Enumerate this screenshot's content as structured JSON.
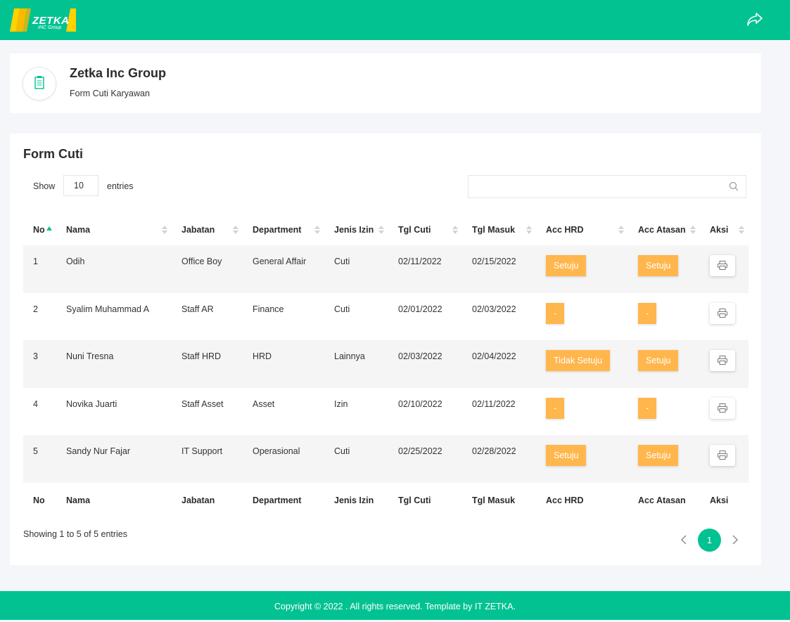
{
  "brand": {
    "name": "ZETKA",
    "sub": "INC Group"
  },
  "header": {
    "title": "Zetka Inc Group",
    "subtitle": "Form Cuti Karyawan"
  },
  "card": {
    "title": "Form Cuti",
    "show": "Show",
    "length": "10",
    "entries": "entries"
  },
  "table": {
    "columns": [
      "No",
      "Nama",
      "Jabatan",
      "Department",
      "Jenis Izin",
      "Tgl Cuti",
      "Tgl Masuk",
      "Acc HRD",
      "Acc Atasan",
      "Aksi"
    ],
    "rows": [
      [
        "1",
        "Odih",
        "Office Boy",
        "General Affair",
        "Cuti",
        "02/11/2022",
        "02/15/2022",
        "Setuju",
        "Setuju"
      ],
      [
        "2",
        "Syalim Muhammad A",
        "Staff AR",
        "Finance",
        "Cuti",
        "02/01/2022",
        "02/03/2022",
        "-",
        "-"
      ],
      [
        "3",
        "Nuni Tresna",
        "Staff HRD",
        "HRD",
        "Lainnya",
        "02/03/2022",
        "02/04/2022",
        "Tidak Setuju",
        "Setuju"
      ],
      [
        "4",
        "Novika Juarti",
        "Staff Asset",
        "Asset",
        "Izin",
        "02/10/2022",
        "02/11/2022",
        "-",
        "-"
      ],
      [
        "5",
        "Sandy Nur Fajar",
        "IT Support",
        "Operasional",
        "Cuti",
        "02/25/2022",
        "02/28/2022",
        "Setuju",
        "Setuju"
      ]
    ]
  },
  "info": "Showing 1 to 5 of 5 entries",
  "pagination": {
    "current": "1"
  },
  "footer": "Copyright © 2022 . All rights reserved. Template by IT ZETKA."
}
